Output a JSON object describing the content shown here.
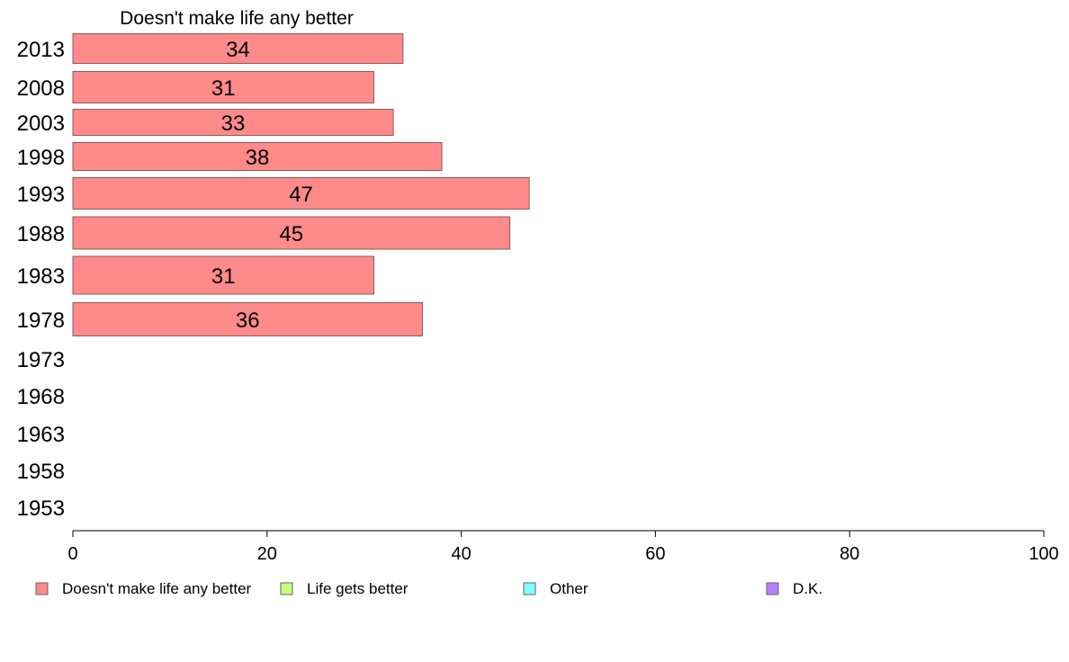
{
  "chart_data": {
    "type": "bar",
    "orientation": "horizontal",
    "title": "Doesn't make life any better",
    "categories": [
      "2013",
      "2008",
      "2003",
      "1998",
      "1993",
      "1988",
      "1983",
      "1978",
      "1973",
      "1968",
      "1963",
      "1958",
      "1953"
    ],
    "series": [
      {
        "name": "Doesn't make life any better",
        "color": "#ff8a8a",
        "values": [
          34,
          31,
          33,
          38,
          47,
          45,
          31,
          36,
          null,
          null,
          null,
          null,
          null
        ],
        "labels": [
          "34",
          "31",
          "33",
          "38",
          "47",
          "45",
          "31",
          "36",
          "",
          "",
          "",
          "",
          ""
        ]
      }
    ],
    "xlim": [
      0,
      100
    ],
    "xticks": [
      "0",
      "20",
      "40",
      "60",
      "80",
      "100"
    ],
    "legend": {
      "placement": "bottom",
      "items": [
        {
          "label": "Doesn't make life any better",
          "color": "#ff8a8a"
        },
        {
          "label": "Life gets better",
          "color": "#c6ff80"
        },
        {
          "label": "Other",
          "color": "#80ffff"
        },
        {
          "label": "D.K.",
          "color": "#b380ff"
        }
      ]
    },
    "grid": false
  }
}
